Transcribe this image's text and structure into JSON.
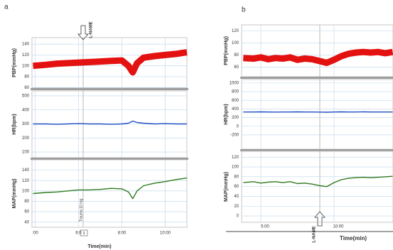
{
  "chart_data": [
    {
      "type": "line",
      "panel_label": "a",
      "ylabel": "PBP(mmHg)",
      "annotations": [
        "L-NAME"
      ],
      "x": [
        3.9,
        4.5,
        5,
        5.5,
        6,
        6.5,
        7,
        7.5,
        8,
        8.3,
        8.5,
        8.7,
        9,
        9.5,
        10,
        10.5,
        11
      ],
      "series": [
        {
          "color": "#e3110f",
          "values": [
            100,
            102,
            104,
            105,
            106,
            107,
            108,
            109,
            110,
            100,
            88,
            105,
            115,
            118,
            120,
            122,
            125
          ]
        }
      ],
      "xlim": [
        3.85,
        11
      ],
      "ylim": [
        59,
        152
      ],
      "yticks": [
        60,
        80,
        100,
        120,
        140
      ],
      "grid": true
    },
    {
      "type": "line",
      "ylabel": "HR(bpm)",
      "x": [
        3.9,
        4.5,
        5,
        5.5,
        6,
        6.5,
        7,
        7.5,
        8,
        8.3,
        8.5,
        8.7,
        9,
        9.5,
        10,
        10.5,
        11
      ],
      "series": [
        {
          "color": "#1f4fc4",
          "values": [
            300,
            300,
            298,
            300,
            302,
            300,
            300,
            298,
            300,
            305,
            320,
            310,
            305,
            300,
            302,
            300,
            300
          ]
        }
      ],
      "xlim": [
        3.85,
        11
      ],
      "ylim": [
        60,
        535
      ],
      "yticks": [
        100,
        200,
        300,
        400,
        500
      ],
      "grid": true
    },
    {
      "type": "line",
      "ylabel": "MAP(mmHg)",
      "xlabel": "Time(min)",
      "annotations": [
        "Trauma 10 mg",
        "3"
      ],
      "x": [
        3.9,
        4.5,
        5,
        5.5,
        6,
        6.5,
        7,
        7.5,
        8,
        8.3,
        8.5,
        8.7,
        9,
        9.5,
        10,
        10.5,
        11
      ],
      "series": [
        {
          "color": "#2e7a1f",
          "values": [
            95,
            97,
            98,
            100,
            102,
            102,
            103,
            105,
            104,
            98,
            85,
            100,
            110,
            115,
            118,
            122,
            125
          ]
        }
      ],
      "xlim": [
        3.85,
        11
      ],
      "ylim": [
        30,
        160
      ],
      "yticks": [
        40,
        60,
        80,
        100,
        120,
        140
      ],
      "xticks": [
        {
          "value": 4,
          "label": ":00"
        },
        {
          "value": 6,
          "label": "6:0"
        },
        {
          "value": 8,
          "label": "8:00"
        },
        {
          "value": 10,
          "label": "10:00"
        }
      ],
      "grid": true
    },
    {
      "type": "line",
      "panel_label": "b",
      "ylabel": "PBP(mmHg)",
      "x": [
        3.8,
        4.5,
        5,
        5.5,
        6,
        6.5,
        7,
        7.5,
        8,
        8.5,
        9,
        9.5,
        10,
        10.5,
        11,
        11.5,
        12,
        12.5,
        13,
        13.5,
        14
      ],
      "series": [
        {
          "color": "#e3110f",
          "values": [
            75,
            74,
            76,
            73,
            75,
            74,
            76,
            72,
            74,
            73,
            70,
            67,
            72,
            78,
            82,
            84,
            85,
            84,
            85,
            83,
            85
          ]
        }
      ],
      "xlim": [
        3.69,
        14.03
      ],
      "ylim": [
        44,
        130
      ],
      "yticks": [
        60,
        80,
        100,
        120
      ],
      "grid": true
    },
    {
      "type": "line",
      "ylabel": "HR(bpm)",
      "x": [
        3.8,
        4.5,
        5,
        5.5,
        6,
        6.5,
        7,
        7.5,
        8,
        8.5,
        9,
        9.5,
        10,
        10.5,
        11,
        11.5,
        12,
        12.5,
        13,
        13.5,
        14
      ],
      "series": [
        {
          "color": "#1f4fc4",
          "values": [
            330,
            330,
            332,
            330,
            328,
            330,
            330,
            332,
            330,
            330,
            328,
            325,
            330,
            332,
            330,
            330,
            332,
            330,
            330,
            330,
            330
          ]
        }
      ],
      "xlim": [
        3.69,
        14.03
      ],
      "ylim": [
        -530,
        1080
      ],
      "yticks": [
        -200,
        0,
        200,
        400,
        600,
        800,
        1000
      ],
      "grid": true
    },
    {
      "type": "line",
      "ylabel": "MAP(mmHg)",
      "xlabel": "Time(min)",
      "annotations": [
        "L-NAME"
      ],
      "x": [
        3.8,
        4.5,
        5,
        5.5,
        6,
        6.5,
        7,
        7.5,
        8,
        8.5,
        9,
        9.5,
        10,
        10.5,
        11,
        11.5,
        12,
        12.5,
        13,
        13.5,
        14
      ],
      "series": [
        {
          "color": "#2e7a1f",
          "values": [
            68,
            70,
            67,
            69,
            70,
            68,
            70,
            66,
            67,
            65,
            62,
            60,
            68,
            74,
            77,
            78,
            79,
            78,
            79,
            80,
            81
          ]
        }
      ],
      "xlim": [
        3.69,
        14.03
      ],
      "ylim": [
        -13,
        132
      ],
      "yticks": [
        0,
        20,
        40,
        60,
        80,
        100,
        120
      ],
      "xticks": [
        {
          "value": 5,
          "label": "5:00"
        },
        {
          "value": 10,
          "label": "10:00"
        }
      ],
      "grid": true
    }
  ]
}
